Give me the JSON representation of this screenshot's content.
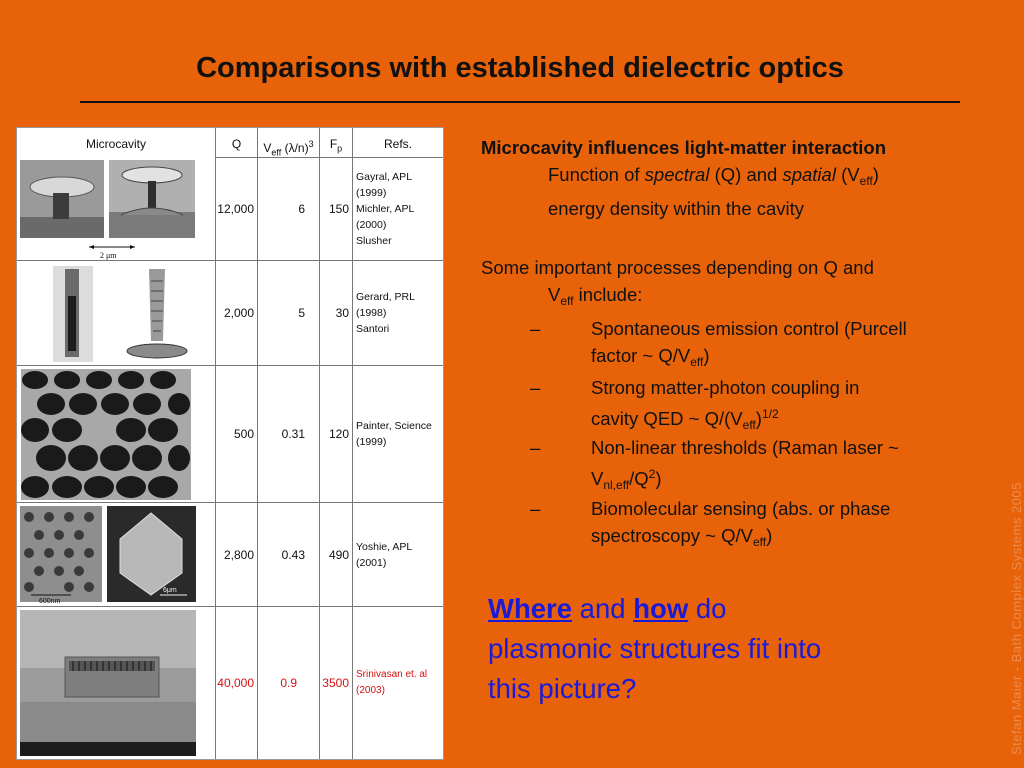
{
  "title": "Comparisons with established dielectric optics",
  "table": {
    "headers": {
      "microcavity": "Microcavity",
      "q": "Q",
      "veff_main": "V",
      "veff_sub": "eff",
      "veff_unit": "(λ/n)",
      "veff_sup": "3",
      "fp_main": "F",
      "fp_sub": "p",
      "refs": "Refs."
    },
    "rows": [
      {
        "q": "12,000",
        "veff": "6",
        "fp": "150",
        "refs": [
          "Gayral, APL (1999)",
          "Michler, APL (2000)",
          "Slusher"
        ],
        "scale": "2 μm"
      },
      {
        "q": "2,000",
        "veff": "5",
        "fp": "30",
        "refs": [
          "Gerard, PRL (1998)",
          "Santori"
        ]
      },
      {
        "q": "500",
        "veff": "0.31",
        "fp": "120",
        "refs": [
          "Painter, Science (1999)"
        ]
      },
      {
        "q": "2,800",
        "veff": "0.43",
        "fp": "490",
        "refs": [
          "Yoshie, APL (2001)"
        ],
        "scale_left": "600nm",
        "scale_right": "6μm"
      },
      {
        "q": "40,000",
        "veff": "0.9",
        "fp": "3500",
        "refs": [
          "Srinivasan et. al (2003)"
        ],
        "highlight_color": "#d51010"
      }
    ]
  },
  "right": {
    "heading": "Microcavity influences light-matter interaction",
    "function_line": {
      "p1": "Function of ",
      "spectral": "spectral",
      "p2": " (Q) and ",
      "spatial": "spatial",
      "p3": " (V",
      "sub": "eff",
      "p4": ")",
      "line2": "energy density within the cavity"
    },
    "processes_intro": {
      "p1": "Some important processes depending on Q and",
      "p2": "V",
      "sub": "eff",
      "p3": " include:"
    },
    "bullets": [
      {
        "dash": "–",
        "l1": "Spontaneous emission control (Purcell",
        "l2a": "factor ~ Q/V",
        "l2sub": "eff",
        "l2b": ")"
      },
      {
        "dash": "–",
        "l1": "Strong matter-photon coupling in",
        "l2a": "cavity QED ~ Q/(V",
        "l2sub": "eff",
        "l2b": ")",
        "l2sup": "1/2"
      },
      {
        "dash": "–",
        "l1": "Non-linear thresholds (Raman laser ~",
        "l2a": "V",
        "l2sub": "nl,eff",
        "l2b": "/Q",
        "l2sup": "2",
        "l2c": ")"
      },
      {
        "dash": "–",
        "l1": "Biomolecular sensing (abs. or phase",
        "l2a": "spectroscopy ~ Q/V",
        "l2sub": "eff",
        "l2b": ")"
      }
    ],
    "question": {
      "where": "Where",
      "and": " and ",
      "how": "how",
      "rest1": " do",
      "rest2": "plasmonic structures fit into",
      "rest3": "this picture?"
    }
  },
  "watermark": "Stefan Maier - Bath Complex Systems 2005",
  "colors": {
    "background": "#e8620a",
    "question_blue": "#1a1ad8",
    "highlight_red": "#d51010"
  }
}
